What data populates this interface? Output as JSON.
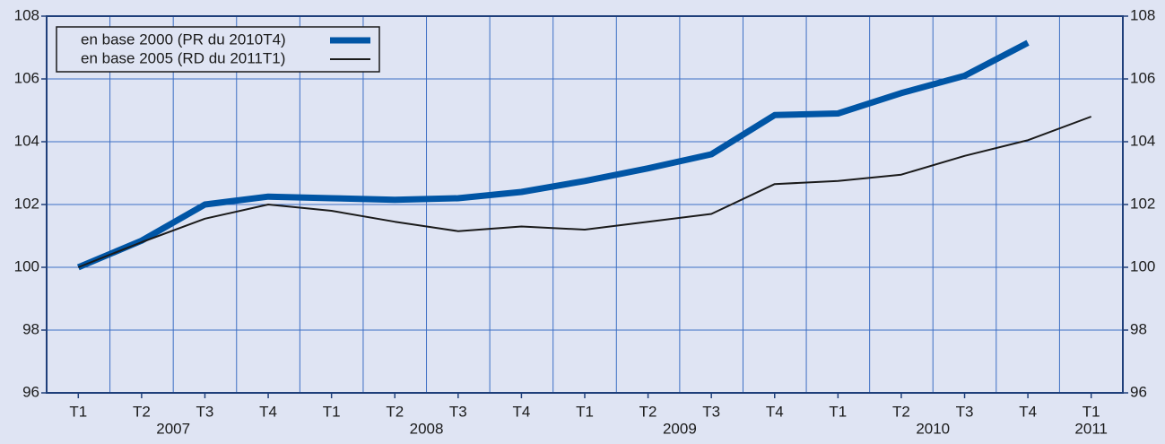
{
  "chart_data": {
    "type": "line",
    "categories": [
      "T1",
      "T2",
      "T3",
      "T4",
      "T1",
      "T2",
      "T3",
      "T4",
      "T1",
      "T2",
      "T3",
      "T4",
      "T1",
      "T2",
      "T3",
      "T4",
      "T1"
    ],
    "years": [
      "2007",
      "2008",
      "2009",
      "2010",
      "2011"
    ],
    "series": [
      {
        "name": "en base 2000 (PR du 2010T4)",
        "color": "#0055a5",
        "values": [
          100.0,
          100.85,
          102.0,
          102.25,
          102.2,
          102.15,
          102.2,
          102.4,
          102.75,
          103.15,
          103.6,
          104.85,
          104.9,
          105.55,
          106.1,
          107.15,
          null
        ]
      },
      {
        "name": "en base 2005 (RD du 2011T1)",
        "color": "#1a1a1a",
        "values": [
          100.0,
          100.8,
          101.55,
          102.0,
          101.8,
          101.45,
          101.15,
          101.3,
          101.2,
          101.45,
          101.7,
          102.65,
          102.75,
          102.95,
          103.55,
          104.05,
          104.8
        ]
      }
    ],
    "ylim": [
      96,
      108
    ],
    "yticks": [
      96,
      98,
      100,
      102,
      104,
      106,
      108
    ],
    "y2lim": [
      96,
      108
    ],
    "y2ticks": [
      96,
      98,
      100,
      102,
      104,
      106,
      108
    ],
    "grid": true,
    "legend": "top-left"
  }
}
